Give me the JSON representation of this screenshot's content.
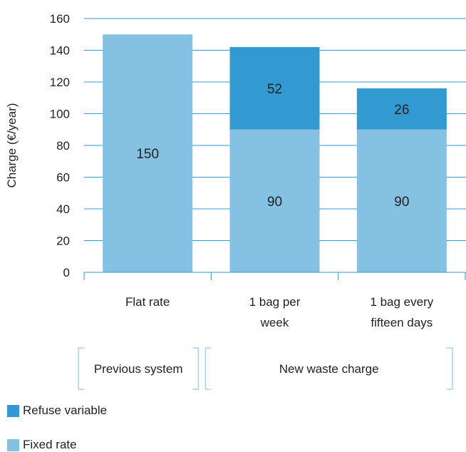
{
  "chart_data": {
    "type": "bar",
    "stacked": true,
    "categories": [
      [
        "Flat rate"
      ],
      [
        "1 bag per",
        "week"
      ],
      [
        "1 bag every",
        "fifteen days"
      ]
    ],
    "series": [
      {
        "name": "Fixed rate",
        "values": [
          150,
          90,
          90
        ],
        "color": "#85c1e3"
      },
      {
        "name": "Refuse variable",
        "values": [
          0,
          52,
          26
        ],
        "color": "#3399d1"
      }
    ],
    "ylabel": "Charge (€/year)",
    "ylim": [
      0,
      160
    ],
    "yticks": [
      0,
      20,
      40,
      60,
      80,
      100,
      120,
      140,
      160
    ],
    "grid": true,
    "groups": [
      {
        "label": "Previous system",
        "categories": [
          0
        ]
      },
      {
        "label": "New waste charge",
        "categories": [
          1,
          2
        ]
      }
    ],
    "legend_position": "bottom-left"
  },
  "legend": {
    "refuse_label": "Refuse variable",
    "fixed_label": "Fixed rate",
    "refuse_color": "#3399d1",
    "fixed_color": "#85c1e3"
  }
}
